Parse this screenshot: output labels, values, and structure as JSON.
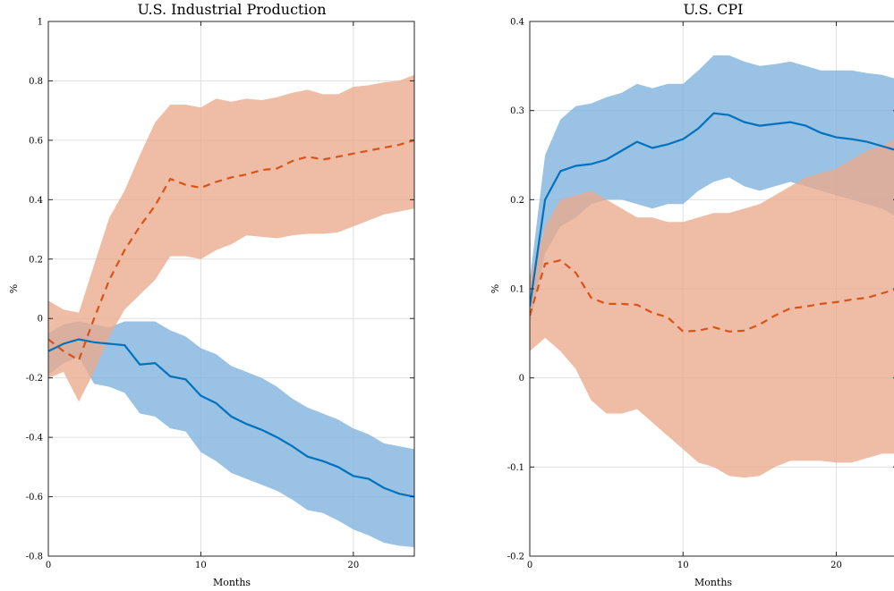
{
  "chart_data": [
    {
      "type": "line",
      "title": "U.S. Industrial Production",
      "xlabel": "Months",
      "ylabel": "%",
      "xlim": [
        0,
        24
      ],
      "ylim": [
        -0.8,
        1
      ],
      "xticks": [
        0,
        10,
        20
      ],
      "yticks": [
        -0.8,
        -0.6,
        -0.4,
        -0.2,
        0,
        0.2,
        0.4,
        0.6,
        0.8,
        1
      ],
      "ytick_labels": [
        "-0.8",
        "-0.6",
        "-0.4",
        "-0.2",
        "0",
        "0.2",
        "0.4",
        "0.6",
        "0.8",
        "1"
      ],
      "grid": true,
      "x": [
        0,
        1,
        2,
        3,
        4,
        5,
        6,
        7,
        8,
        9,
        10,
        11,
        12,
        13,
        14,
        15,
        16,
        17,
        18,
        19,
        20,
        21,
        22,
        23,
        24
      ],
      "series": [
        {
          "color": "#0072BD",
          "band_color": "#7fb3de",
          "line_style": "solid",
          "values": [
            -0.11,
            -0.085,
            -0.07,
            -0.08,
            -0.085,
            -0.09,
            -0.155,
            -0.15,
            -0.195,
            -0.205,
            -0.26,
            -0.285,
            -0.33,
            -0.355,
            -0.375,
            -0.4,
            -0.43,
            -0.465,
            -0.48,
            -0.5,
            -0.53,
            -0.54,
            -0.57,
            -0.59,
            -0.6
          ],
          "lower": [
            -0.19,
            -0.15,
            -0.13,
            -0.22,
            -0.23,
            -0.25,
            -0.32,
            -0.33,
            -0.37,
            -0.38,
            -0.45,
            -0.48,
            -0.52,
            -0.54,
            -0.56,
            -0.58,
            -0.61,
            -0.645,
            -0.655,
            -0.68,
            -0.71,
            -0.73,
            -0.755,
            -0.765,
            -0.77
          ],
          "upper": [
            -0.05,
            -0.02,
            -0.01,
            -0.02,
            -0.03,
            -0.01,
            -0.01,
            -0.01,
            -0.04,
            -0.06,
            -0.1,
            -0.12,
            -0.16,
            -0.18,
            -0.2,
            -0.23,
            -0.27,
            -0.3,
            -0.32,
            -0.34,
            -0.37,
            -0.39,
            -0.42,
            -0.43,
            -0.44
          ]
        },
        {
          "color": "#D95319",
          "band_color": "#eaa98c",
          "line_style": "dashed",
          "values": [
            -0.07,
            -0.11,
            -0.14,
            0.0,
            0.13,
            0.23,
            0.31,
            0.38,
            0.47,
            0.45,
            0.44,
            0.46,
            0.475,
            0.485,
            0.5,
            0.505,
            0.53,
            0.545,
            0.535,
            0.545,
            0.555,
            0.565,
            0.575,
            0.585,
            0.6
          ],
          "lower": [
            -0.2,
            -0.18,
            -0.28,
            -0.18,
            -0.06,
            0.03,
            0.08,
            0.13,
            0.21,
            0.21,
            0.2,
            0.23,
            0.25,
            0.28,
            0.275,
            0.27,
            0.28,
            0.285,
            0.285,
            0.29,
            0.31,
            0.33,
            0.35,
            0.36,
            0.37
          ],
          "upper": [
            0.06,
            0.03,
            0.02,
            0.18,
            0.34,
            0.43,
            0.55,
            0.66,
            0.72,
            0.72,
            0.71,
            0.74,
            0.73,
            0.74,
            0.735,
            0.745,
            0.76,
            0.77,
            0.755,
            0.755,
            0.78,
            0.785,
            0.795,
            0.8,
            0.82
          ]
        }
      ]
    },
    {
      "type": "line",
      "title": "U.S. CPI",
      "xlabel": "Months",
      "ylabel": "%",
      "xlim": [
        0,
        24
      ],
      "ylim": [
        -0.2,
        0.4
      ],
      "xticks": [
        0,
        10,
        20
      ],
      "yticks": [
        -0.2,
        -0.1,
        0,
        0.1,
        0.2,
        0.3,
        0.4
      ],
      "ytick_labels": [
        "-0.2",
        "-0.1",
        "0",
        "0.1",
        "0.2",
        "0.3",
        "0.4"
      ],
      "grid": true,
      "x": [
        0,
        1,
        2,
        3,
        4,
        5,
        6,
        7,
        8,
        9,
        10,
        11,
        12,
        13,
        14,
        15,
        16,
        17,
        18,
        19,
        20,
        21,
        22,
        23,
        24
      ],
      "series": [
        {
          "color": "#0072BD",
          "band_color": "#7fb3de",
          "line_style": "solid",
          "values": [
            0.08,
            0.2,
            0.232,
            0.238,
            0.24,
            0.245,
            0.255,
            0.265,
            0.258,
            0.262,
            0.268,
            0.28,
            0.297,
            0.295,
            0.287,
            0.283,
            0.285,
            0.287,
            0.283,
            0.275,
            0.27,
            0.268,
            0.265,
            0.26,
            0.255
          ],
          "lower": [
            0.06,
            0.14,
            0.17,
            0.18,
            0.195,
            0.2,
            0.2,
            0.195,
            0.19,
            0.195,
            0.195,
            0.21,
            0.22,
            0.225,
            0.215,
            0.21,
            0.215,
            0.22,
            0.215,
            0.21,
            0.205,
            0.2,
            0.195,
            0.19,
            0.18
          ],
          "upper": [
            0.11,
            0.25,
            0.29,
            0.305,
            0.308,
            0.315,
            0.32,
            0.33,
            0.325,
            0.33,
            0.33,
            0.345,
            0.362,
            0.362,
            0.355,
            0.35,
            0.352,
            0.355,
            0.35,
            0.345,
            0.345,
            0.345,
            0.342,
            0.34,
            0.335
          ]
        },
        {
          "color": "#D95319",
          "band_color": "#eaa98c",
          "line_style": "dashed",
          "values": [
            0.07,
            0.128,
            0.132,
            0.118,
            0.09,
            0.083,
            0.083,
            0.082,
            0.073,
            0.068,
            0.052,
            0.053,
            0.057,
            0.052,
            0.053,
            0.06,
            0.07,
            0.078,
            0.08,
            0.083,
            0.085,
            0.088,
            0.09,
            0.095,
            0.1
          ],
          "lower": [
            0.03,
            0.045,
            0.03,
            0.01,
            -0.025,
            -0.04,
            -0.04,
            -0.035,
            -0.05,
            -0.065,
            -0.08,
            -0.095,
            -0.1,
            -0.11,
            -0.112,
            -0.11,
            -0.1,
            -0.093,
            -0.093,
            -0.093,
            -0.095,
            -0.095,
            -0.09,
            -0.085,
            -0.085
          ],
          "upper": [
            0.11,
            0.17,
            0.2,
            0.205,
            0.21,
            0.2,
            0.19,
            0.18,
            0.18,
            0.175,
            0.175,
            0.18,
            0.185,
            0.185,
            0.19,
            0.195,
            0.205,
            0.215,
            0.225,
            0.23,
            0.235,
            0.245,
            0.255,
            0.26,
            0.27
          ]
        }
      ]
    }
  ]
}
